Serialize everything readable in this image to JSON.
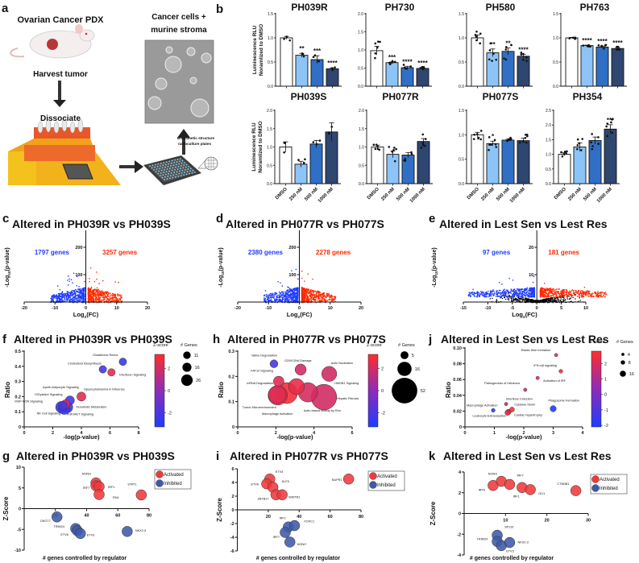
{
  "panel_labels": [
    "a",
    "b",
    "c",
    "d",
    "e",
    "f",
    "g",
    "h",
    "i",
    "j",
    "k"
  ],
  "panel_a": {
    "title": "Ovarian Cancer PDX",
    "step1": "Harvest tumor",
    "step2": "Dissociate",
    "result_line1": "Cancer cells +",
    "result_line2": "murine stroma",
    "plate_line1": "Biomimetic structure",
    "plate_line2": "nanoculture plates"
  },
  "chart_data": [
    {
      "panel": "b",
      "type": "bar",
      "ylabel_lines": [
        "Luminescence RLU",
        "Noramlized to DMSO"
      ],
      "categories": [
        "DMSO",
        "250 nM",
        "500 nM",
        "1000 nM"
      ],
      "colors": [
        "#ffffff",
        "#8cc4f7",
        "#2f6fc6",
        "#2e4670"
      ],
      "charts": [
        {
          "title": "PH039R",
          "ylim": [
            0,
            1.5
          ],
          "yticks": [
            "0.0",
            "0.5",
            "1.0",
            "1.5"
          ],
          "values": [
            1.0,
            0.64,
            0.55,
            0.36
          ],
          "sem": [
            0.03,
            0.04,
            0.08,
            0.02
          ],
          "n": 3,
          "significance": [
            "",
            "**",
            "***",
            "****"
          ]
        },
        {
          "title": "PH730",
          "ylim": [
            0,
            2.0
          ],
          "yticks": [
            "0.0",
            "0.5",
            "1.0",
            "1.5",
            "2.0"
          ],
          "values": [
            0.98,
            0.65,
            0.51,
            0.49
          ],
          "sem": [
            0.12,
            0.02,
            0.04,
            0.02
          ],
          "n": 6,
          "significance": [
            "",
            "***",
            "****",
            "****"
          ]
        },
        {
          "title": "PH580",
          "ylim": [
            0,
            1.5
          ],
          "yticks": [
            "0.0",
            "0.5",
            "1.0",
            "1.5"
          ],
          "values": [
            1.0,
            0.69,
            0.72,
            0.62
          ],
          "sem": [
            0.06,
            0.08,
            0.07,
            0.04
          ],
          "n": 6,
          "significance": [
            "",
            "**",
            "**",
            "****"
          ]
        },
        {
          "title": "PH763",
          "ylim": [
            0,
            1.5
          ],
          "yticks": [
            "0.0",
            "0.5",
            "1.0",
            "1.5"
          ],
          "values": [
            1.0,
            0.84,
            0.81,
            0.78
          ],
          "sem": [
            0.01,
            0.01,
            0.02,
            0.02
          ],
          "n": 5,
          "significance": [
            "",
            "****",
            "****",
            "****"
          ]
        },
        {
          "title": "PH039S",
          "ylim": [
            0,
            2.0
          ],
          "yticks": [
            "0.0",
            "0.5",
            "1.0",
            "1.5",
            "2.0"
          ],
          "values": [
            1.0,
            0.53,
            1.08,
            1.41
          ],
          "sem": [
            0.14,
            0.08,
            0.1,
            0.25
          ],
          "n": 3,
          "significance": [
            "",
            "",
            "",
            ""
          ]
        },
        {
          "title": "PH077R",
          "ylim": [
            0,
            2.0
          ],
          "yticks": [
            "0.0",
            "0.5",
            "1.0",
            "1.5",
            "2.0"
          ],
          "values": [
            1.0,
            0.8,
            0.78,
            1.15
          ],
          "sem": [
            0.05,
            0.09,
            0.07,
            0.08
          ],
          "n": 6,
          "significance": [
            "",
            "",
            "",
            ""
          ]
        },
        {
          "title": "PH077S",
          "ylim": [
            0,
            1.5
          ],
          "yticks": [
            "0.0",
            "0.5",
            "1.0",
            "1.5"
          ],
          "values": [
            1.0,
            0.82,
            0.89,
            0.88
          ],
          "sem": [
            0.05,
            0.05,
            0.02,
            0.05
          ],
          "n": 7,
          "significance": [
            "",
            "*",
            "",
            ""
          ]
        },
        {
          "title": "PH354",
          "ylim": [
            0,
            2.5
          ],
          "yticks": [
            "0.0",
            "0.5",
            "1.0",
            "1.5",
            "2.0",
            "2.5"
          ],
          "values": [
            1.0,
            1.25,
            1.47,
            1.86
          ],
          "sem": [
            0.05,
            0.14,
            0.12,
            0.15
          ],
          "n": 6,
          "significance": [
            "",
            "",
            "",
            "***"
          ]
        }
      ]
    },
    {
      "panel": "c",
      "type": "scatter",
      "title": "Altered in PH039R vs PH039S",
      "xlabel": {
        "base": "Log",
        "sub": "2",
        "rest": "(FC)"
      },
      "ylabel": {
        "base": "-Log",
        "sub": "10",
        "rest": "(p-value)"
      },
      "xlim": [
        -20,
        20
      ],
      "xticks": [
        "-20",
        "-10",
        "0",
        "10",
        "20"
      ],
      "ylim": [
        0,
        250
      ],
      "yticks": [
        "0",
        "100",
        "200"
      ],
      "down_label": "1797 genes",
      "up_label": "3257 genes",
      "down_color": "#1f3cff",
      "up_color": "#ff2a00",
      "ns_color": "#000000"
    },
    {
      "panel": "d",
      "type": "scatter",
      "title": "Altered in PH077R vs PH077S",
      "xlabel": {
        "base": "Log",
        "sub": "2",
        "rest": "(FC)"
      },
      "ylabel": {
        "base": "-Log",
        "sub": "10",
        "rest": "(p-value)"
      },
      "xlim": [
        -20,
        20
      ],
      "xticks": [
        "-20",
        "-10",
        "0",
        "10",
        "20"
      ],
      "ylim": [
        0,
        250
      ],
      "yticks": [
        "0",
        "100",
        "200"
      ],
      "down_label": "2380 genes",
      "up_label": "2278 genes",
      "down_color": "#1f3cff",
      "up_color": "#ff2a00",
      "ns_color": "#000000"
    },
    {
      "panel": "e",
      "type": "scatter",
      "title": "Altered in Lest Sen vs Lest Res",
      "xlabel": {
        "base": "Log",
        "sub": "2",
        "rest": "(FC)"
      },
      "ylabel": {
        "base": "-Log",
        "sub": "10",
        "rest": "(p-value)"
      },
      "xlim": [
        -15,
        10
      ],
      "xticks": [
        "-15",
        "-10",
        "-5",
        "0",
        "5",
        "10"
      ],
      "ylim": [
        0,
        25
      ],
      "yticks": [
        "0",
        "10",
        "20"
      ],
      "down_label": "97 genes",
      "up_label": "181 genes",
      "down_color": "#1f3cff",
      "up_color": "#ff2a00",
      "ns_color": "#000000"
    },
    {
      "panel": "f",
      "type": "bubble",
      "title": "Altered in PH039R vs PH039S",
      "xlabel": "-log(p-value)",
      "ylabel": "Ratio",
      "xlim": [
        0,
        8
      ],
      "xticks": [
        "0",
        "2",
        "4",
        "6",
        "8"
      ],
      "ylim": [
        0,
        0.5
      ],
      "yticks": [
        "0",
        "0.1",
        "0.2",
        "0.3",
        "0.4",
        "0.5"
      ],
      "zlabel": "Z-score",
      "zlim": [
        -3.3,
        3.3
      ],
      "zticks": [
        "2",
        "0",
        "-2"
      ],
      "size_label": "# Genes",
      "size_legend": [
        "11",
        "16",
        "26"
      ],
      "points": [
        {
          "label": "Glutathione Redox",
          "x": 6.9,
          "y": 0.43,
          "z": -2.5,
          "genes": 11
        },
        {
          "label": "Cholesterol Biosynthesis",
          "x": 5.5,
          "y": 0.38,
          "z": -2.2,
          "genes": 11
        },
        {
          "label": "Interferon Signaling",
          "x": 6.1,
          "y": 0.36,
          "z": 2.6,
          "genes": 11
        },
        {
          "label": "Hypercytokinemia in Influenza",
          "x": 4.0,
          "y": 0.2,
          "z": 2.5,
          "genes": 16
        },
        {
          "label": "Apelin Adipocyte Signaling",
          "x": 3.2,
          "y": 0.175,
          "z": -2.2,
          "genes": 16
        },
        {
          "label": "ISGylation Signaling",
          "x": 2.9,
          "y": 0.15,
          "z": 2.2,
          "genes": 16
        },
        {
          "label": "MSP-RON Signaling",
          "x": 2.7,
          "y": 0.14,
          "z": -2.0,
          "genes": 16
        },
        {
          "label": "Xenobiotic Metabolism",
          "x": 3.0,
          "y": 0.13,
          "z": -2.3,
          "genes": 26
        },
        {
          "label": "NK Cell Signaling",
          "x": 2.6,
          "y": 0.13,
          "z": -2.6,
          "genes": 26
        },
        {
          "label": "PI3K/AKT Signaling",
          "x": 2.8,
          "y": 0.12,
          "z": -2.4,
          "genes": 26
        }
      ]
    },
    {
      "panel": "h",
      "type": "bubble",
      "title": "Altered in PH077R vs PH077S",
      "xlabel": "-log(p-value)",
      "ylabel": "Ratio",
      "xlim": [
        0,
        6
      ],
      "xticks": [
        "0",
        "2",
        "4",
        "6"
      ],
      "ylim": [
        0,
        0.3
      ],
      "yticks": [
        "0",
        "0.1",
        "0.2",
        "0.3"
      ],
      "zlabel": "Z-score",
      "zlim": [
        -3.3,
        3.3
      ],
      "zticks": [
        "2",
        "0",
        "-2"
      ],
      "size_label": "# Genes",
      "size_legend": [
        "5",
        "16",
        "52"
      ],
      "points": [
        {
          "label": "Valine Degradation",
          "x": 1.9,
          "y": 0.25,
          "z": -2.0,
          "genes": 5
        },
        {
          "label": "G2/M DNA Damage",
          "x": 3.3,
          "y": 0.227,
          "z": 2.0,
          "genes": 10
        },
        {
          "label": "Actin Nucleation",
          "x": 4.8,
          "y": 0.21,
          "z": 2.0,
          "genes": 18
        },
        {
          "label": "FAT10 Signaling",
          "x": 2.15,
          "y": 0.18,
          "z": 2.4,
          "genes": 9
        },
        {
          "label": "mRNA Degradation",
          "x": 2.07,
          "y": 0.128,
          "z": 2.4,
          "genes": 25
        },
        {
          "label": "HMGB1 Signaling",
          "x": 3.68,
          "y": 0.137,
          "z": 2.1,
          "genes": 30
        },
        {
          "label": "Hepatic Fibrosis",
          "x": 4.52,
          "y": 0.118,
          "z": 2.0,
          "genes": 52
        },
        {
          "label": "Tumor Microenvironment",
          "x": 2.1,
          "y": 0.125,
          "z": 2.5,
          "genes": 30
        },
        {
          "label": "Macrophage Activation",
          "x": 2.58,
          "y": 0.134,
          "z": 3.0,
          "genes": 35
        },
        {
          "label": "Actin-based Motility by Rho",
          "x": 3.08,
          "y": 0.16,
          "z": 2.6,
          "genes": 20
        }
      ]
    },
    {
      "panel": "j",
      "type": "bubble",
      "title": "Altered in Lest Sen vs Lest Res",
      "xlabel": "-log(p-value)",
      "ylabel": "Ratio",
      "xlim": [
        0,
        4
      ],
      "xticks": [
        "0",
        "1",
        "2",
        "3",
        "4"
      ],
      "ylim": [
        0,
        0.1
      ],
      "yticks": [
        "0",
        "0.02",
        "0.04",
        "0.06",
        "0.08",
        "0.10"
      ],
      "zlabel": "Z-score",
      "zlim": [
        -2.1,
        2.8
      ],
      "zticks": [
        "2",
        "1",
        "0",
        "-1",
        "-2"
      ],
      "size_label": "# Genes",
      "size_legend": [
        "4",
        "8",
        "16"
      ],
      "points": [
        {
          "label": "Elastic fibre formation",
          "x": 3.1,
          "y": 0.091,
          "z": 2.0,
          "genes": 5
        },
        {
          "label": "IFN α/β signaling",
          "x": 3.26,
          "y": 0.0705,
          "z": 2.4,
          "genes": 6
        },
        {
          "label": "Activation of IRF",
          "x": 2.47,
          "y": 0.062,
          "z": 2.0,
          "genes": 5
        },
        {
          "label": "Pathogenesis of Influenza",
          "x": 2.05,
          "y": 0.047,
          "z": 2.0,
          "genes": 5
        },
        {
          "label": "Interferon Induction",
          "x": 1.4,
          "y": 0.029,
          "z": 2.0,
          "genes": 5
        },
        {
          "label": "Macrophage Activation",
          "x": 0.96,
          "y": 0.021,
          "z": -2.0,
          "genes": 6
        },
        {
          "label": "Cytokine Storm",
          "x": 1.6,
          "y": 0.022,
          "z": 2.8,
          "genes": 10
        },
        {
          "label": "Cardiac Hypertrophy",
          "x": 1.48,
          "y": 0.019,
          "z": 2.4,
          "genes": 12
        },
        {
          "label": "Leukocyte Extravasation",
          "x": 1.45,
          "y": 0.018,
          "z": 2.2,
          "genes": 12
        },
        {
          "label": "Phagosome Formation",
          "x": 3.0,
          "y": 0.023,
          "z": -2.0,
          "genes": 16
        }
      ]
    },
    {
      "panel": "g",
      "type": "scatter",
      "title": "Altered in PH039R vs PH039S",
      "xlabel": "# genes controlled by regulator",
      "ylabel": "Z-Score",
      "xlim": [
        0,
        80
      ],
      "xticks": [
        "20",
        "40",
        "60",
        "80"
      ],
      "ylim": [
        -10,
        10
      ],
      "yticks": [
        "-10",
        "-5",
        "0",
        "5",
        "10"
      ],
      "legend": [
        "Activated",
        "Inhibited"
      ],
      "colors": [
        "#f0393c",
        "#3d5aa8"
      ],
      "points": [
        {
          "label": "NONO",
          "x": 46,
          "y": 6.2,
          "group": 0
        },
        {
          "label": "IRF7",
          "x": 46,
          "y": 5.5,
          "group": 0
        },
        {
          "label": "IRF1",
          "x": 48,
          "y": 5.3,
          "group": 0
        },
        {
          "label": "PML",
          "x": 48,
          "y": 3.4,
          "group": 0
        },
        {
          "label": "STAT1",
          "x": 75,
          "y": 3.3,
          "group": 0
        },
        {
          "label": "CNOT7",
          "x": 21,
          "y": -2.0,
          "group": 1
        },
        {
          "label": "TRIM24",
          "x": 33,
          "y": -4.8,
          "group": 1
        },
        {
          "label": "ETV6",
          "x": 34,
          "y": -5.3,
          "group": 1
        },
        {
          "label": "ETV3",
          "x": 36,
          "y": -6.0,
          "group": 1
        },
        {
          "label": "NKX2-3",
          "x": 66,
          "y": -5.5,
          "group": 1
        }
      ]
    },
    {
      "panel": "i",
      "type": "scatter",
      "title": "Altered in PH077R vs PH077S",
      "xlabel": "# genes controlled by regulator",
      "ylabel": "Z-Score",
      "xlim": [
        0,
        80
      ],
      "xticks": [
        "20",
        "40",
        "60",
        "80"
      ],
      "ylim": [
        -6,
        6
      ],
      "yticks": [
        "-6",
        "-4",
        "-2",
        "0",
        "2",
        "4",
        "6"
      ],
      "legend": [
        "Activated",
        "Inhibited"
      ],
      "colors": [
        "#f0393c",
        "#3d5aa8"
      ],
      "points": [
        {
          "label": "ETV3",
          "x": 21,
          "y": 4.5,
          "group": 0
        },
        {
          "label": "ETV6",
          "x": 19,
          "y": 3.8,
          "group": 0
        },
        {
          "label": "KLF5",
          "x": 23,
          "y": 3.3,
          "group": 0
        },
        {
          "label": "ZBTB17",
          "x": 25,
          "y": 2.2,
          "group": 0
        },
        {
          "label": "WWTR1",
          "x": 29,
          "y": 2.2,
          "group": 0
        },
        {
          "label": "NUPR1",
          "x": 72,
          "y": 4.5,
          "group": 0
        },
        {
          "label": "IRF1",
          "x": 33,
          "y": -2.5,
          "group": 1
        },
        {
          "label": "FOXC1",
          "x": 37,
          "y": -2.3,
          "group": 1
        },
        {
          "label": "IRF7",
          "x": 31,
          "y": -3.3,
          "group": 1
        },
        {
          "label": "NONO",
          "x": 34,
          "y": -4.7,
          "group": 1
        }
      ]
    },
    {
      "panel": "k",
      "type": "scatter",
      "title": "Altered in Lest Sen vs Lest Res",
      "xlabel": "# genes controlled by regulator",
      "ylabel": "Z-Score",
      "xlim": [
        0,
        30
      ],
      "xticks": [
        "10",
        "20",
        "30"
      ],
      "ylim": [
        -4,
        4
      ],
      "yticks": [
        "-4",
        "-2",
        "0",
        "2",
        "4"
      ],
      "legend": [
        "Activated",
        "Inhibited"
      ],
      "colors": [
        "#f0393c",
        "#3d5aa8"
      ],
      "points": [
        {
          "label": "IRF5",
          "x": 7,
          "y": 2.7,
          "group": 0
        },
        {
          "label": "NONO",
          "x": 9,
          "y": 3.1,
          "group": 0
        },
        {
          "label": "IRF7",
          "x": 11,
          "y": 2.8,
          "group": 0
        },
        {
          "label": "IRF1",
          "x": 14,
          "y": 2.5,
          "group": 0
        },
        {
          "label": "GLI1",
          "x": 16,
          "y": 2.3,
          "group": 0
        },
        {
          "label": "CTNNB1",
          "x": 27,
          "y": 2.2,
          "group": 0
        },
        {
          "label": "SP110",
          "x": 8,
          "y": -2.1,
          "group": 1
        },
        {
          "label": "TRIM24",
          "x": 8,
          "y": -2.7,
          "group": 1
        },
        {
          "label": "ETV3",
          "x": 9,
          "y": -3.1,
          "group": 1
        },
        {
          "label": "NKX2-3",
          "x": 11,
          "y": -2.8,
          "group": 1
        }
      ]
    }
  ]
}
